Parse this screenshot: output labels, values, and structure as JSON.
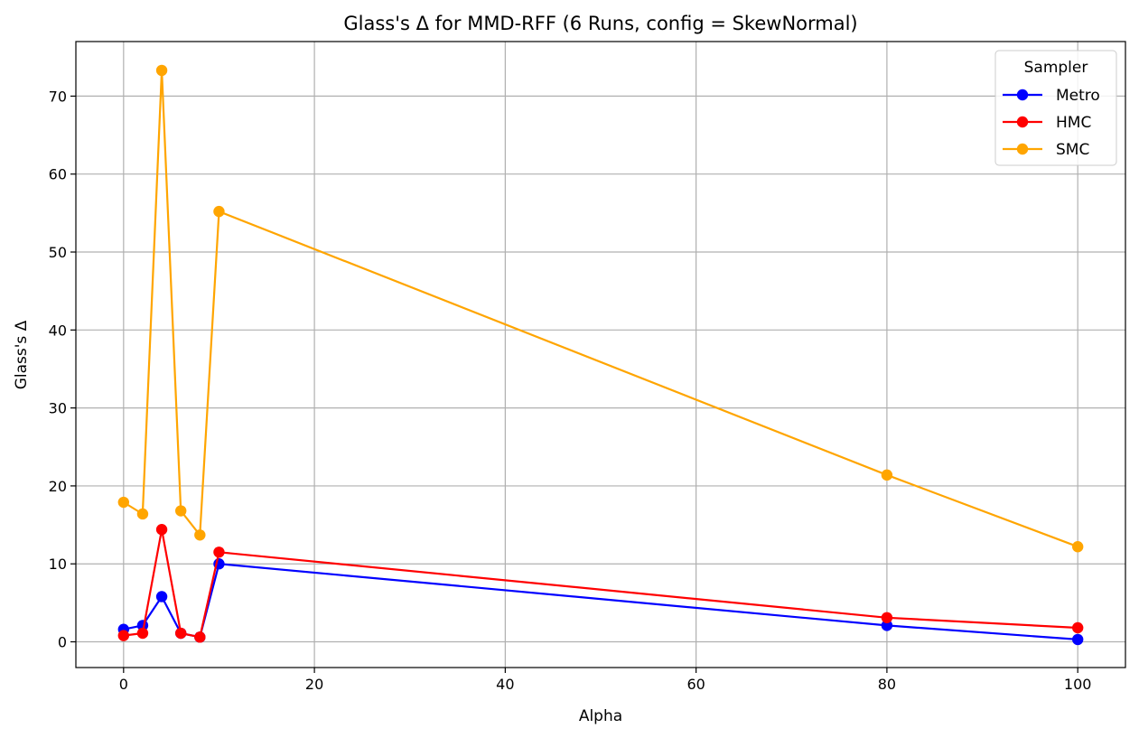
{
  "chart_data": {
    "type": "line",
    "title": "Glass's Δ for MMD-RFF (6 Runs, config = SkewNormal)",
    "xlabel": "Alpha",
    "ylabel": "Glass's Δ",
    "xlim": [
      -5,
      105
    ],
    "ylim": [
      -3.3,
      77
    ],
    "xticks": [
      0,
      20,
      40,
      60,
      80,
      100
    ],
    "yticks": [
      0,
      10,
      20,
      30,
      40,
      50,
      60,
      70
    ],
    "grid": true,
    "legend": {
      "title": "Sampler",
      "position": "top-right"
    },
    "x": [
      0,
      2,
      4,
      6,
      8,
      10,
      80,
      100
    ],
    "series": [
      {
        "name": "Metro",
        "color": "#0000ff",
        "values": [
          1.6,
          2.1,
          5.8,
          1.1,
          0.6,
          10.0,
          2.1,
          0.3
        ]
      },
      {
        "name": "HMC",
        "color": "#ff0000",
        "values": [
          0.8,
          1.1,
          14.4,
          1.1,
          0.6,
          11.5,
          3.1,
          1.8
        ]
      },
      {
        "name": "SMC",
        "color": "#ffa500",
        "values": [
          17.9,
          16.4,
          73.3,
          16.8,
          13.7,
          55.2,
          21.4,
          12.2
        ]
      }
    ]
  }
}
